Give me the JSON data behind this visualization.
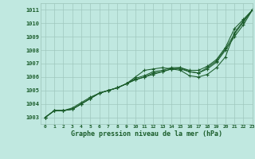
{
  "background_color": "#c0e8e0",
  "grid_color": "#a0c8be",
  "line_color": "#1a5c2a",
  "marker_color": "#1a5c2a",
  "title": "Graphe pression niveau de la mer (hPa)",
  "ylim": [
    1002.5,
    1011.5
  ],
  "xlim": [
    -0.5,
    23
  ],
  "yticks": [
    1003,
    1004,
    1005,
    1006,
    1007,
    1008,
    1009,
    1010,
    1011
  ],
  "xticks": [
    0,
    1,
    2,
    3,
    4,
    5,
    6,
    7,
    8,
    9,
    10,
    11,
    12,
    13,
    14,
    15,
    16,
    17,
    18,
    19,
    20,
    21,
    22,
    23
  ],
  "series": [
    [
      1003.0,
      1003.5,
      1003.5,
      1003.7,
      1004.1,
      1004.5,
      1004.8,
      1005.0,
      1005.2,
      1005.5,
      1006.0,
      1006.5,
      1006.6,
      1006.7,
      1006.6,
      1006.5,
      1006.1,
      1006.0,
      1006.2,
      1006.7,
      1007.5,
      1009.3,
      1010.2,
      1011.0
    ],
    [
      1003.0,
      1003.5,
      1003.5,
      1003.6,
      1004.0,
      1004.4,
      1004.8,
      1005.0,
      1005.2,
      1005.5,
      1005.9,
      1006.1,
      1006.4,
      1006.5,
      1006.7,
      1006.7,
      1006.5,
      1006.5,
      1006.8,
      1007.3,
      1008.2,
      1009.6,
      1010.3,
      1011.0
    ],
    [
      1003.0,
      1003.5,
      1003.5,
      1003.6,
      1004.0,
      1004.4,
      1004.8,
      1005.0,
      1005.2,
      1005.5,
      1005.8,
      1006.0,
      1006.3,
      1006.4,
      1006.6,
      1006.7,
      1006.4,
      1006.3,
      1006.7,
      1007.2,
      1008.1,
      1009.2,
      1010.1,
      1011.0
    ],
    [
      1003.0,
      1003.5,
      1003.5,
      1003.6,
      1004.0,
      1004.4,
      1004.8,
      1005.0,
      1005.2,
      1005.5,
      1005.8,
      1006.0,
      1006.2,
      1006.4,
      1006.6,
      1006.6,
      1006.4,
      1006.3,
      1006.6,
      1007.1,
      1008.0,
      1009.0,
      1009.9,
      1011.0
    ]
  ]
}
